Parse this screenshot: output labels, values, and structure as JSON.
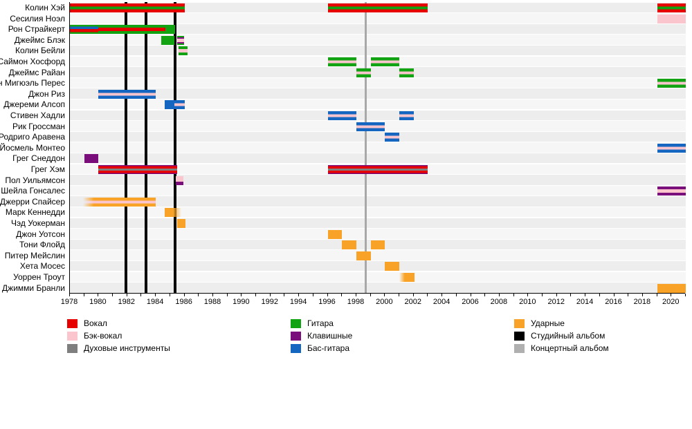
{
  "chart_data": {
    "type": "timeline",
    "title": "",
    "x_axis": {
      "start": 1978,
      "end": 2021,
      "label_step": 2,
      "labels": [
        1978,
        1980,
        1982,
        1984,
        1986,
        1988,
        1990,
        1992,
        1994,
        1996,
        1998,
        2000,
        2002,
        2004,
        2006,
        2008,
        2010,
        2012,
        2014,
        2016,
        2018,
        2020
      ]
    },
    "colors": {
      "vocals": "#e60000",
      "backing": "#fbc5ce",
      "wind": "#7f7f7f",
      "guitar": "#12a312",
      "keys": "#7a0e7a",
      "bass": "#1566c0",
      "drums": "#f8a327",
      "studio": "#000000",
      "live": "#b0b0b0"
    },
    "albums": {
      "studio": [
        1981.9,
        1983.3,
        1985.35
      ],
      "live": [
        1998.65
      ]
    },
    "members": [
      {
        "name": "Колин Хэй",
        "bars": [
          {
            "start": 1978,
            "end": 1986,
            "stripes": [
              "vocals",
              "guitar",
              "vocals"
            ],
            "weights": [
              35,
              30,
              35
            ]
          },
          {
            "start": 1996,
            "end": 2003,
            "stripes": [
              "vocals",
              "guitar",
              "vocals"
            ],
            "weights": [
              35,
              30,
              35
            ]
          },
          {
            "start": 2019,
            "end": 2021,
            "stripes": [
              "vocals",
              "guitar",
              "vocals"
            ],
            "weights": [
              35,
              30,
              35
            ]
          }
        ]
      },
      {
        "name": "Сесилия Ноэл",
        "bars": [
          {
            "start": 2019,
            "end": 2021,
            "stripes": [
              "backing"
            ]
          }
        ]
      },
      {
        "name": "Рон Страйкерт",
        "bars": [
          {
            "start": 1978,
            "end": 1980,
            "stripes": [
              "guitar",
              "bass",
              "vocals",
              "guitar"
            ],
            "weights": [
              18,
              30,
              34,
              18
            ]
          },
          {
            "start": 1980,
            "end": 1984.65,
            "stripes": [
              "guitar",
              "vocals",
              "guitar"
            ],
            "weights": [
              32,
              36,
              32
            ]
          },
          {
            "start": 1984.65,
            "end": 1985.33,
            "stripes": [
              "guitar"
            ]
          }
        ]
      },
      {
        "name": "Джеймс Блэк",
        "bars": [
          {
            "start": 1984.4,
            "end": 1985.3,
            "stripes": [
              "guitar"
            ]
          },
          {
            "start": 1985.5,
            "end": 1985.95,
            "stripes": [
              "guitar",
              "keys",
              "backing",
              "keys",
              "guitar"
            ],
            "weights": [
              16,
              15,
              38,
              15,
              16
            ]
          }
        ]
      },
      {
        "name": "Колин Бейли",
        "bars": [
          {
            "start": 1985.6,
            "end": 1986.2,
            "stripes": [
              "guitar",
              "backing",
              "guitar"
            ],
            "weights": [
              32,
              36,
              32
            ]
          }
        ]
      },
      {
        "name": "Саймон Хосфорд",
        "bars": [
          {
            "start": 1996,
            "end": 1998,
            "stripes": [
              "guitar",
              "backing",
              "guitar"
            ]
          },
          {
            "start": 1999,
            "end": 2001,
            "stripes": [
              "guitar",
              "backing",
              "guitar"
            ]
          }
        ]
      },
      {
        "name": "Джеймс Райан",
        "bars": [
          {
            "start": 1998,
            "end": 1999,
            "stripes": [
              "guitar",
              "backing",
              "guitar"
            ]
          },
          {
            "start": 2001,
            "end": 2002,
            "stripes": [
              "guitar",
              "backing",
              "guitar"
            ]
          }
        ]
      },
      {
        "name": "эн Мигюэль Перес",
        "bars": [
          {
            "start": 2019,
            "end": 2021,
            "stripes": [
              "guitar",
              "backing",
              "guitar"
            ]
          }
        ]
      },
      {
        "name": "Джон Риз",
        "bars": [
          {
            "start": 1980,
            "end": 1984,
            "stripes": [
              "bass",
              "backing",
              "bass"
            ]
          }
        ]
      },
      {
        "name": "Джереми Алсоп",
        "bars": [
          {
            "start": 1984.6,
            "end": 1985.3,
            "stripes": [
              "bass"
            ]
          },
          {
            "start": 1985.3,
            "end": 1986.02,
            "stripes": [
              "bass",
              "backing",
              "bass"
            ]
          }
        ]
      },
      {
        "name": "Стивен Хадли",
        "bars": [
          {
            "start": 1996,
            "end": 1998,
            "stripes": [
              "bass",
              "backing",
              "bass"
            ]
          },
          {
            "start": 2001,
            "end": 2002,
            "stripes": [
              "bass",
              "backing",
              "bass"
            ]
          }
        ]
      },
      {
        "name": "Рик Гроссман",
        "bars": [
          {
            "start": 1998,
            "end": 2000,
            "stripes": [
              "bass",
              "backing",
              "bass"
            ]
          }
        ]
      },
      {
        "name": "Родриго Аравена",
        "bars": [
          {
            "start": 2000,
            "end": 2001,
            "stripes": [
              "bass",
              "backing",
              "bass"
            ]
          }
        ]
      },
      {
        "name": "Йосмель Монтео",
        "bars": [
          {
            "start": 2019,
            "end": 2021,
            "stripes": [
              "bass",
              "backing",
              "bass"
            ]
          }
        ]
      },
      {
        "name": "Грег Снеддон",
        "bars": [
          {
            "start": 1979,
            "end": 1980,
            "stripes": [
              "keys"
            ]
          }
        ]
      },
      {
        "name": "Грег Хэм",
        "bars": [
          {
            "start": 1980,
            "end": 1985.5,
            "stripes": [
              "keys",
              "vocals",
              "wind",
              "vocals",
              "keys"
            ],
            "weights": [
              13,
              25,
              24,
              25,
              13
            ]
          },
          {
            "start": 1996,
            "end": 2003,
            "stripes": [
              "keys",
              "vocals",
              "wind",
              "vocals",
              "keys"
            ],
            "weights": [
              13,
              25,
              24,
              25,
              13
            ]
          }
        ]
      },
      {
        "name": "Пол Уильямсон",
        "bars": [
          {
            "start": 1985.4,
            "end": 1985.9,
            "stripes": [
              "backing",
              "keys"
            ],
            "weights": [
              62,
              38
            ]
          }
        ]
      },
      {
        "name": "Шейла Гонсалес",
        "bars": [
          {
            "start": 2019,
            "end": 2021,
            "stripes": [
              "keys",
              "backing",
              "keys"
            ],
            "weights": [
              30,
              40,
              30
            ]
          }
        ]
      },
      {
        "name": "Джерри Спайсер",
        "bars": [
          {
            "start": 1978.9,
            "end": 1984,
            "stripes": [
              "drums",
              "backing",
              "drums"
            ],
            "weights": [
              33,
              34,
              33
            ],
            "fade": "left",
            "fade_frac": 0.15
          }
        ]
      },
      {
        "name": "Марк Кеннедди",
        "bars": [
          {
            "start": 1984.6,
            "end": 1985.8,
            "stripes": [
              "drums"
            ],
            "fade": "right",
            "fade_frac": 0.5
          }
        ]
      },
      {
        "name": "Чэд Уокерман",
        "bars": [
          {
            "start": 1985.5,
            "end": 1986.05,
            "stripes": [
              "drums"
            ]
          }
        ]
      },
      {
        "name": "Джон Уотсон",
        "bars": [
          {
            "start": 1996,
            "end": 1997,
            "stripes": [
              "drums"
            ]
          }
        ]
      },
      {
        "name": "Тони Флойд",
        "bars": [
          {
            "start": 1997,
            "end": 1998,
            "stripes": [
              "drums"
            ]
          },
          {
            "start": 1999,
            "end": 2000,
            "stripes": [
              "drums"
            ]
          }
        ]
      },
      {
        "name": "Питер Мейслин",
        "bars": [
          {
            "start": 1998,
            "end": 1999,
            "stripes": [
              "drums"
            ]
          }
        ]
      },
      {
        "name": "Хета Мосес",
        "bars": [
          {
            "start": 2000,
            "end": 2001,
            "stripes": [
              "drums"
            ]
          }
        ]
      },
      {
        "name": "Уоррен Троут",
        "bars": [
          {
            "start": 2001,
            "end": 2002.05,
            "stripes": [
              "drums"
            ],
            "fade": "left",
            "fade_frac": 0.35
          }
        ]
      },
      {
        "name": "Джимми Бранли",
        "bars": [
          {
            "start": 2019,
            "end": 2021,
            "stripes": [
              "drums"
            ]
          }
        ]
      }
    ],
    "legend": {
      "columns": [
        {
          "items": [
            {
              "key": "vocals",
              "label": "Вокал"
            },
            {
              "key": "backing",
              "label": "Бэк-вокал"
            },
            {
              "key": "wind",
              "label": "Духовые инструменты"
            }
          ]
        },
        {
          "items": [
            {
              "key": "guitar",
              "label": "Гитара"
            },
            {
              "key": "keys",
              "label": "Клавишные"
            },
            {
              "key": "bass",
              "label": "Бас-гитара"
            }
          ]
        },
        {
          "items": [
            {
              "key": "drums",
              "label": "Ударные"
            },
            {
              "key": "studio",
              "label": "Студийный альбом"
            },
            {
              "key": "live",
              "label": "Концертный альбом"
            }
          ]
        }
      ]
    }
  }
}
